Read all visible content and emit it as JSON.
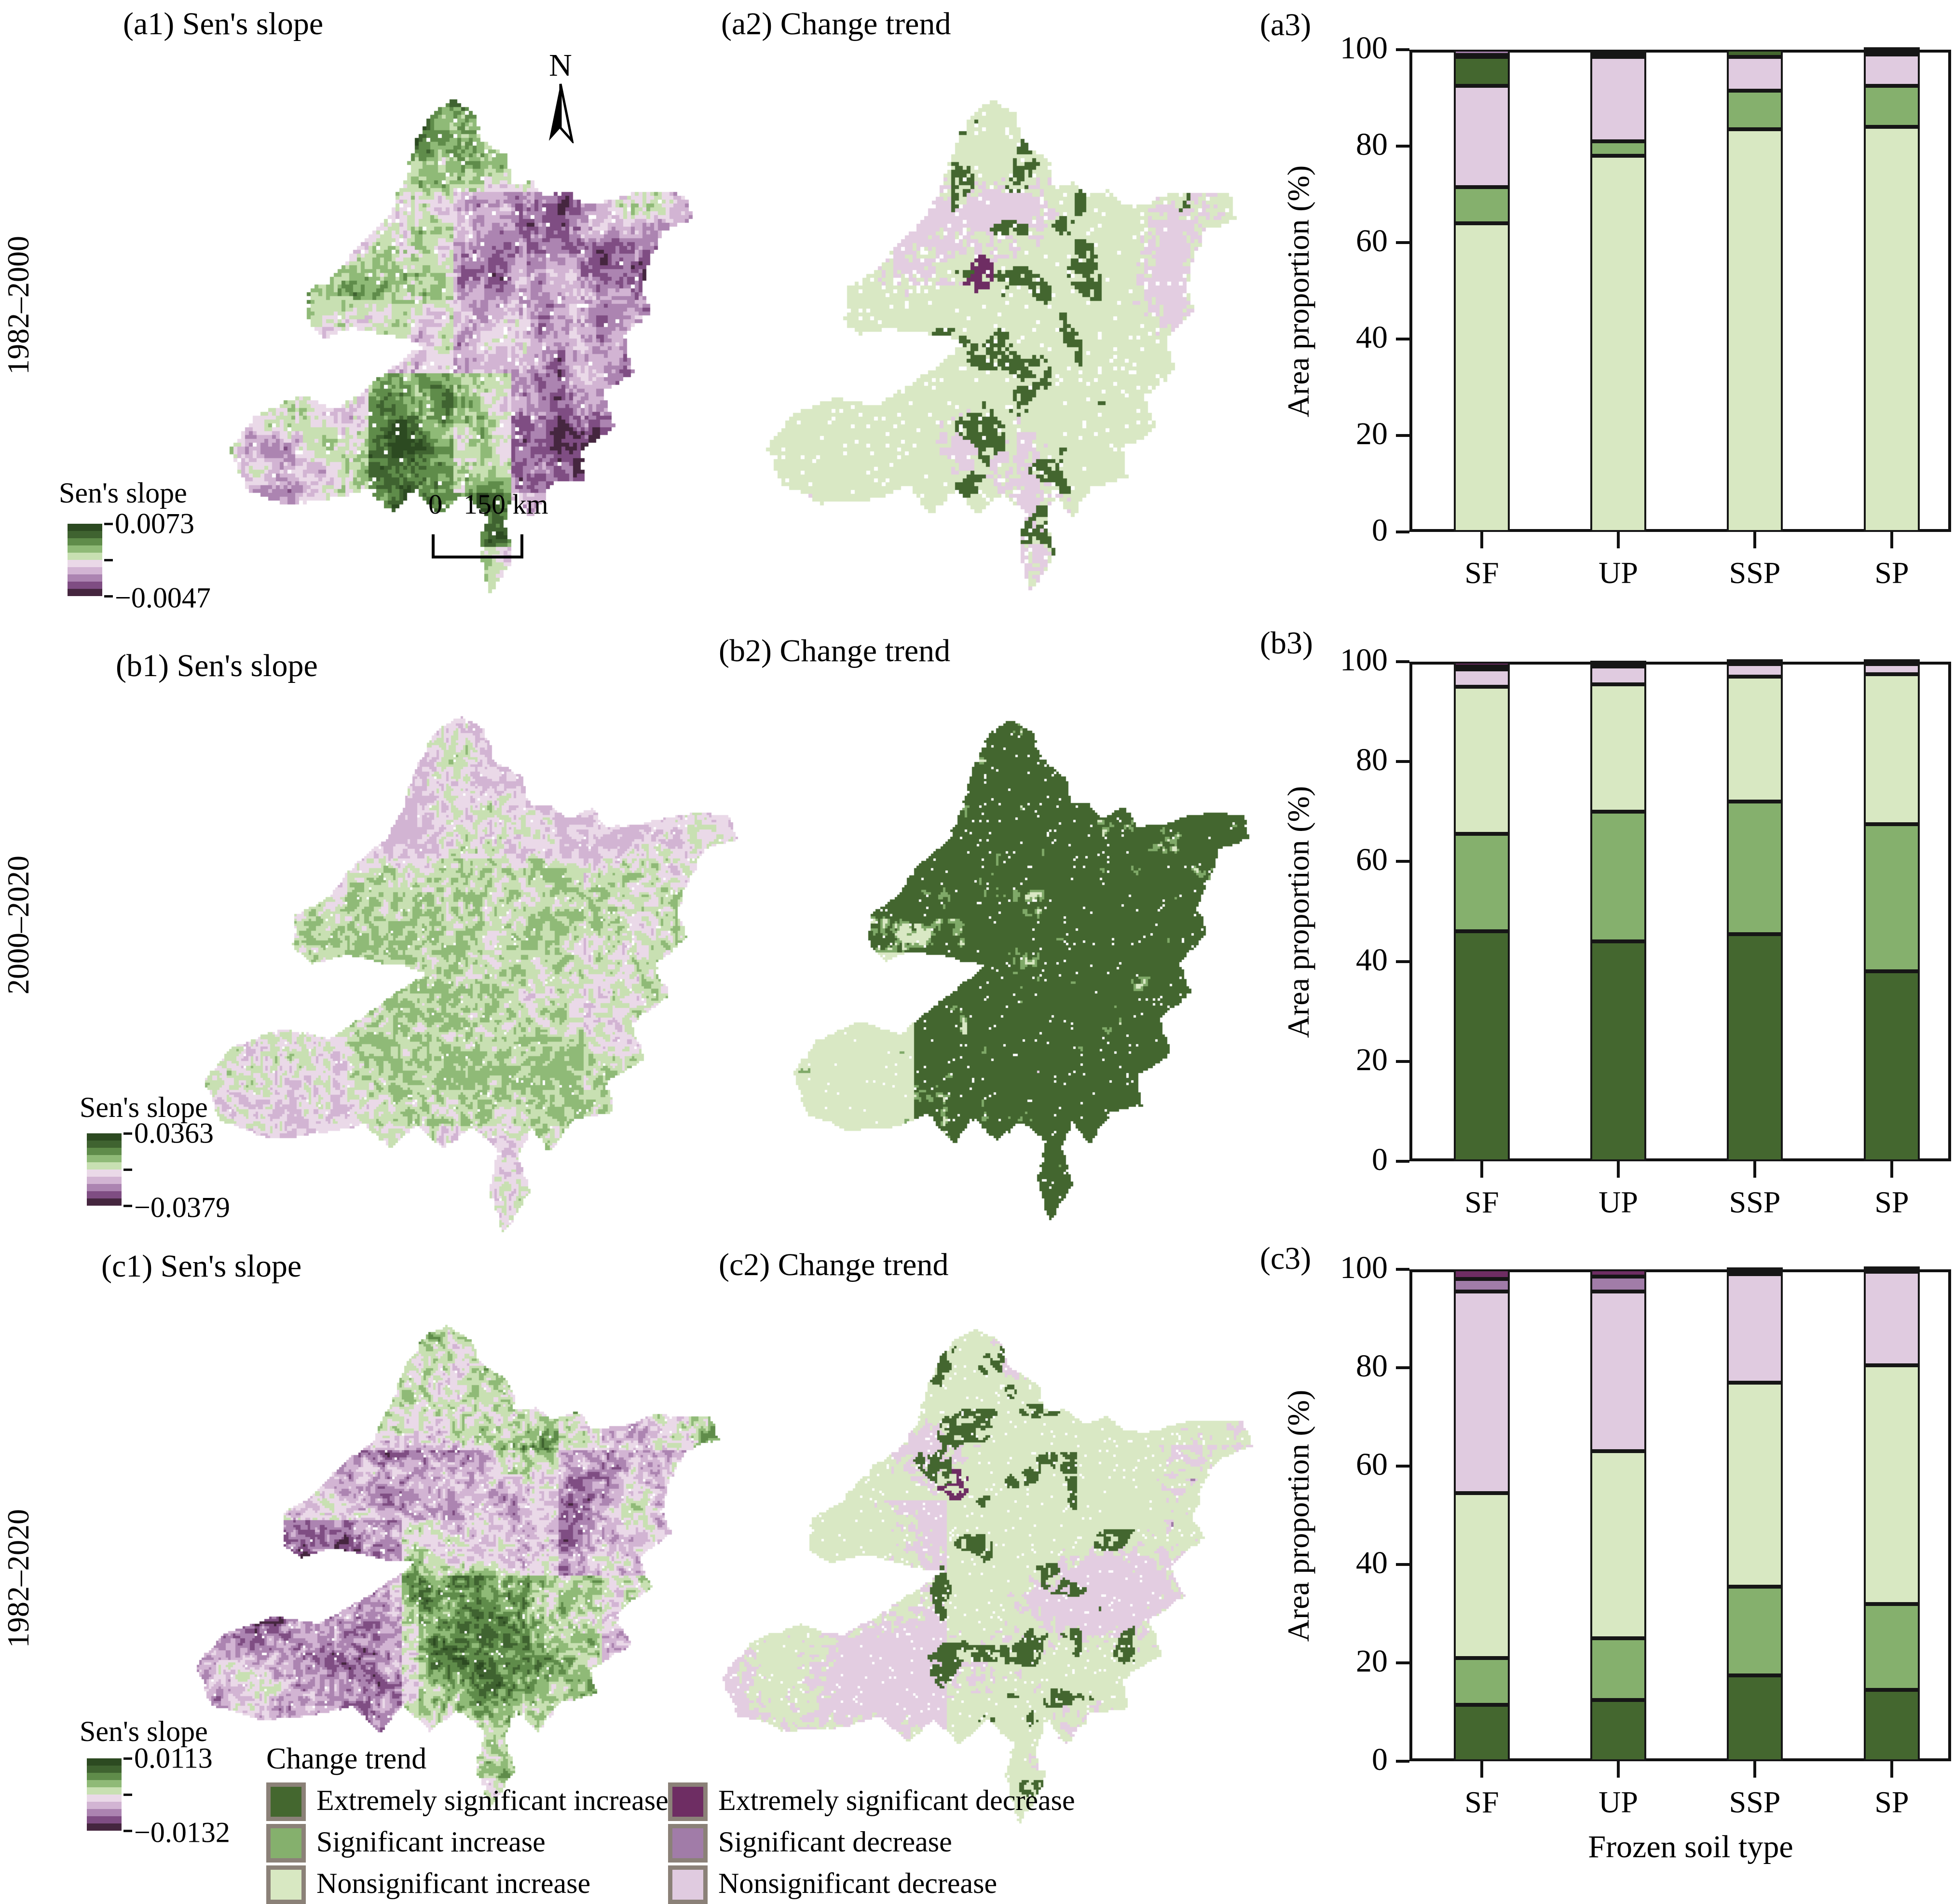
{
  "figure": {
    "rows": [
      {
        "period": "1982–2000",
        "sen_title": "(a1) Sen's slope",
        "trend_title": "(a2) Change trend",
        "colorbar": {
          "title": "Sen's slope",
          "max": "0.0073",
          "min": "−0.0047"
        }
      },
      {
        "period": "2000–2020",
        "sen_title": "(b1) Sen's slope",
        "trend_title": "(b2) Change trend",
        "colorbar": {
          "title": "Sen's slope",
          "max": "0.0363",
          "min": "−0.0379"
        }
      },
      {
        "period": "1982–2020",
        "sen_title": "(c1) Sen's slope",
        "trend_title": "(c2) Change trend",
        "colorbar": {
          "title": "Sen's slope",
          "max": "0.0113",
          "min": "−0.0132"
        }
      }
    ],
    "north_arrow_label": "N",
    "scale_bar": {
      "zero": "0",
      "distance": "150 km"
    },
    "colorbar_colors": [
      "#2c4a21",
      "#3f6330",
      "#5f8c4a",
      "#8fba77",
      "#c8e0b2",
      "#ead9e8",
      "#d2b4d3",
      "#ac84b1",
      "#7f4d83",
      "#45263f"
    ],
    "legend": {
      "title": "Change trend",
      "left_items": [
        {
          "key": "ext_inc",
          "label": "Extremely significant increase",
          "color": "#44672f"
        },
        {
          "key": "sig_inc",
          "label": "Significant increase",
          "color": "#85b06d"
        },
        {
          "key": "nonsig_inc",
          "label": "Nonsignificant increase",
          "color": "#d8e8c2"
        }
      ],
      "right_items": [
        {
          "key": "ext_dec",
          "label": "Extremely significant decrease",
          "color": "#6e2d63"
        },
        {
          "key": "sig_dec",
          "label": "Significant decrease",
          "color": "#a17ca8"
        },
        {
          "key": "nonsig_dec",
          "label": "Nonsignificant decrease",
          "color": "#e0cbe0"
        }
      ]
    },
    "map_palette": {
      "dark_green": "#43662f",
      "mid_green": "#7fa968",
      "light_green": "#d9e8c4",
      "pink": "#e3cde1",
      "mid_purple": "#a07ba8",
      "dark_purple": "#6e2d63"
    }
  },
  "chart_data": [
    {
      "id": "a3",
      "type": "bar",
      "title": "(a3)",
      "period": "1982–2000",
      "xlabel": "",
      "ylabel": "Area proportion (%)",
      "ylim": [
        0,
        100
      ],
      "yticks": [
        0,
        20,
        40,
        60,
        80,
        100
      ],
      "categories": [
        "SF",
        "UP",
        "SSP",
        "SP"
      ],
      "bars": [
        {
          "category": "SF",
          "segments": [
            {
              "key": "nonsig_inc",
              "trend": "Nonsignificant increase",
              "value": 64
            },
            {
              "key": "sig_inc",
              "trend": "Significant increase",
              "value": 7.5
            },
            {
              "key": "nonsig_dec",
              "trend": "Nonsignificant decrease",
              "value": 21
            },
            {
              "key": "ext_inc",
              "trend": "Extremely significant increase",
              "value": 6
            },
            {
              "key": "ext_dec",
              "trend": "Extremely significant decrease",
              "value": 0.4
            },
            {
              "key": "sig_dec",
              "trend": "Significant decrease",
              "value": 1.1
            }
          ]
        },
        {
          "category": "UP",
          "segments": [
            {
              "key": "nonsig_inc",
              "trend": "Nonsignificant increase",
              "value": 78
            },
            {
              "key": "sig_inc",
              "trend": "Significant increase",
              "value": 3
            },
            {
              "key": "nonsig_dec",
              "trend": "Nonsignificant decrease",
              "value": 17.5
            },
            {
              "key": "ext_inc",
              "trend": "Extremely significant increase",
              "value": 0.4
            },
            {
              "key": "ext_dec",
              "trend": "Extremely significant decrease",
              "value": 0.3
            },
            {
              "key": "sig_dec",
              "trend": "Significant decrease",
              "value": 0.8
            }
          ]
        },
        {
          "category": "SSP",
          "segments": [
            {
              "key": "nonsig_inc",
              "trend": "Nonsignificant increase",
              "value": 83.5
            },
            {
              "key": "sig_inc",
              "trend": "Significant increase",
              "value": 8
            },
            {
              "key": "nonsig_dec",
              "trend": "Nonsignificant decrease",
              "value": 7
            },
            {
              "key": "ext_inc",
              "trend": "Extremely significant increase",
              "value": 1.5
            }
          ]
        },
        {
          "category": "SP",
          "segments": [
            {
              "key": "nonsig_inc",
              "trend": "Nonsignificant increase",
              "value": 84
            },
            {
              "key": "sig_inc",
              "trend": "Significant increase",
              "value": 8.5
            },
            {
              "key": "nonsig_dec",
              "trend": "Nonsignificant decrease",
              "value": 6.5
            },
            {
              "key": "ext_inc",
              "trend": "Extremely significant increase",
              "value": 0.7
            },
            {
              "key": "sig_dec",
              "trend": "Significant decrease",
              "value": 0.3
            }
          ]
        }
      ]
    },
    {
      "id": "b3",
      "type": "bar",
      "title": "(b3)",
      "period": "2000–2020",
      "xlabel": "",
      "ylabel": "Area proportion (%)",
      "ylim": [
        0,
        100
      ],
      "yticks": [
        0,
        20,
        40,
        60,
        80,
        100
      ],
      "categories": [
        "SF",
        "UP",
        "SSP",
        "SP"
      ],
      "bars": [
        {
          "category": "SF",
          "segments": [
            {
              "key": "ext_inc",
              "trend": "Extremely significant increase",
              "value": 46
            },
            {
              "key": "sig_inc",
              "trend": "Significant increase",
              "value": 19.5
            },
            {
              "key": "nonsig_inc",
              "trend": "Nonsignificant increase",
              "value": 29.5
            },
            {
              "key": "nonsig_dec",
              "trend": "Nonsignificant decrease",
              "value": 3.5
            },
            {
              "key": "sig_dec",
              "trend": "Significant decrease",
              "value": 0.5
            },
            {
              "key": "ext_dec",
              "trend": "Extremely significant decrease",
              "value": 1.0
            }
          ]
        },
        {
          "category": "UP",
          "segments": [
            {
              "key": "ext_inc",
              "trend": "Extremely significant increase",
              "value": 44
            },
            {
              "key": "sig_inc",
              "trend": "Significant increase",
              "value": 26
            },
            {
              "key": "nonsig_inc",
              "trend": "Nonsignificant increase",
              "value": 25.5
            },
            {
              "key": "nonsig_dec",
              "trend": "Nonsignificant decrease",
              "value": 3.5
            },
            {
              "key": "sig_dec",
              "trend": "Significant decrease",
              "value": 0.4
            },
            {
              "key": "ext_dec",
              "trend": "Extremely significant decrease",
              "value": 0.6
            }
          ]
        },
        {
          "category": "SSP",
          "segments": [
            {
              "key": "ext_inc",
              "trend": "Extremely significant increase",
              "value": 45.5
            },
            {
              "key": "sig_inc",
              "trend": "Significant increase",
              "value": 26.5
            },
            {
              "key": "nonsig_inc",
              "trend": "Nonsignificant increase",
              "value": 25
            },
            {
              "key": "nonsig_dec",
              "trend": "Nonsignificant decrease",
              "value": 2.5
            },
            {
              "key": "sig_dec",
              "trend": "Significant decrease",
              "value": 0.2
            },
            {
              "key": "ext_dec",
              "trend": "Extremely significant decrease",
              "value": 0.3
            }
          ]
        },
        {
          "category": "SP",
          "segments": [
            {
              "key": "ext_inc",
              "trend": "Extremely significant increase",
              "value": 38
            },
            {
              "key": "sig_inc",
              "trend": "Significant increase",
              "value": 29.5
            },
            {
              "key": "nonsig_inc",
              "trend": "Nonsignificant increase",
              "value": 30
            },
            {
              "key": "nonsig_dec",
              "trend": "Nonsignificant decrease",
              "value": 2
            },
            {
              "key": "sig_dec",
              "trend": "Significant decrease",
              "value": 0.2
            },
            {
              "key": "ext_dec",
              "trend": "Extremely significant decrease",
              "value": 0.3
            }
          ]
        }
      ]
    },
    {
      "id": "c3",
      "type": "bar",
      "title": "(c3)",
      "period": "1982–2020",
      "xlabel": "Frozen soil type",
      "ylabel": "Area proportion (%)",
      "ylim": [
        0,
        100
      ],
      "yticks": [
        0,
        20,
        40,
        60,
        80,
        100
      ],
      "categories": [
        "SF",
        "UP",
        "SSP",
        "SP"
      ],
      "bars": [
        {
          "category": "SF",
          "segments": [
            {
              "key": "ext_inc",
              "trend": "Extremely significant increase",
              "value": 11.5
            },
            {
              "key": "sig_inc",
              "trend": "Significant increase",
              "value": 9.5
            },
            {
              "key": "nonsig_inc",
              "trend": "Nonsignificant increase",
              "value": 33.5
            },
            {
              "key": "nonsig_dec",
              "trend": "Nonsignificant decrease",
              "value": 41
            },
            {
              "key": "sig_dec",
              "trend": "Significant decrease",
              "value": 2.5
            },
            {
              "key": "ext_dec",
              "trend": "Extremely significant decrease",
              "value": 2
            }
          ]
        },
        {
          "category": "UP",
          "segments": [
            {
              "key": "ext_inc",
              "trend": "Extremely significant increase",
              "value": 12.5
            },
            {
              "key": "sig_inc",
              "trend": "Significant increase",
              "value": 12.5
            },
            {
              "key": "nonsig_inc",
              "trend": "Nonsignificant increase",
              "value": 38
            },
            {
              "key": "nonsig_dec",
              "trend": "Nonsignificant decrease",
              "value": 32.5
            },
            {
              "key": "sig_dec",
              "trend": "Significant decrease",
              "value": 3
            },
            {
              "key": "ext_dec",
              "trend": "Extremely significant decrease",
              "value": 1.5
            }
          ]
        },
        {
          "category": "SSP",
          "segments": [
            {
              "key": "ext_inc",
              "trend": "Extremely significant increase",
              "value": 17.5
            },
            {
              "key": "sig_inc",
              "trend": "Significant increase",
              "value": 18
            },
            {
              "key": "nonsig_inc",
              "trend": "Nonsignificant increase",
              "value": 41.5
            },
            {
              "key": "nonsig_dec",
              "trend": "Nonsignificant decrease",
              "value": 22
            },
            {
              "key": "sig_dec",
              "trend": "Significant decrease",
              "value": 0.6
            },
            {
              "key": "ext_dec",
              "trend": "Extremely significant decrease",
              "value": 0.4
            }
          ]
        },
        {
          "category": "SP",
          "segments": [
            {
              "key": "ext_inc",
              "trend": "Extremely significant increase",
              "value": 14.5
            },
            {
              "key": "sig_inc",
              "trend": "Significant increase",
              "value": 17.5
            },
            {
              "key": "nonsig_inc",
              "trend": "Nonsignificant increase",
              "value": 48.5
            },
            {
              "key": "nonsig_dec",
              "trend": "Nonsignificant decrease",
              "value": 19
            },
            {
              "key": "sig_dec",
              "trend": "Significant decrease",
              "value": 0.3
            },
            {
              "key": "ext_dec",
              "trend": "Extremely significant decrease",
              "value": 0.2
            }
          ]
        }
      ]
    }
  ]
}
